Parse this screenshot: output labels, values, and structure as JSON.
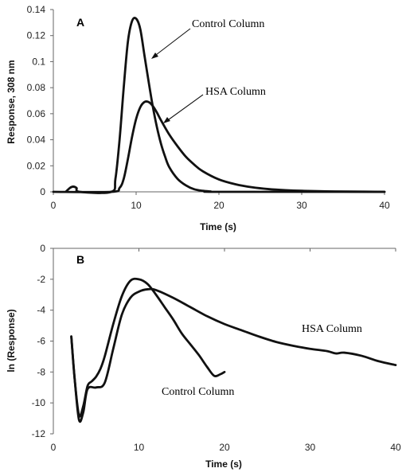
{
  "chart_data": [
    {
      "type": "line",
      "panel_label": "A",
      "xlabel": "Time (s)",
      "ylabel": "Response, 308 nm",
      "xlim": [
        0,
        40
      ],
      "ylim": [
        0,
        0.14
      ],
      "xticks": [
        0,
        10,
        20,
        30,
        40
      ],
      "yticks": [
        0,
        0.02,
        0.04,
        0.06,
        0.08,
        0.1,
        0.12,
        0.14
      ],
      "ytick_labels": [
        "0",
        "0.02",
        "0.04",
        "0.06",
        "0.08",
        "0.1",
        "0.12",
        "0.14"
      ],
      "grid": false,
      "series": [
        {
          "name": "Control Column",
          "x": [
            1.5,
            2.0,
            2.4,
            2.8,
            3.2,
            7.0,
            7.5,
            8.0,
            8.5,
            9.0,
            9.5,
            10.0,
            10.5,
            11.0,
            11.5,
            12.0,
            12.5,
            13.0,
            13.5,
            14.0,
            15.0,
            16.0,
            17.0,
            18.0,
            19.0,
            20.0,
            40.0
          ],
          "y": [
            0.0,
            0.003,
            0.004,
            0.003,
            0.0,
            0.0,
            0.01,
            0.04,
            0.08,
            0.115,
            0.131,
            0.133,
            0.125,
            0.105,
            0.085,
            0.066,
            0.05,
            0.037,
            0.027,
            0.019,
            0.01,
            0.005,
            0.002,
            0.0008,
            0.0003,
            0.0,
            0.0
          ]
        },
        {
          "name": "HSA Column",
          "x": [
            0.0,
            7.0,
            8.0,
            8.5,
            9.0,
            9.5,
            10.0,
            10.5,
            11.0,
            11.5,
            12.0,
            12.5,
            13.0,
            14.0,
            15.0,
            16.0,
            17.0,
            18.0,
            20.0,
            22.0,
            24.0,
            26.0,
            28.0,
            30.0,
            33.0,
            36.0,
            40.0
          ],
          "y": [
            0.0,
            0.0,
            0.003,
            0.01,
            0.025,
            0.042,
            0.056,
            0.065,
            0.069,
            0.069,
            0.066,
            0.061,
            0.055,
            0.044,
            0.035,
            0.027,
            0.021,
            0.016,
            0.0095,
            0.0058,
            0.0035,
            0.0021,
            0.0013,
            0.0008,
            0.0004,
            0.0002,
            0.0
          ]
        }
      ],
      "annotations": [
        {
          "text": "Control Column",
          "target_x": 12.0,
          "target_y": 0.14
        },
        {
          "text": "HSA Column",
          "target_x": 13.5,
          "target_y": 0.072
        }
      ]
    },
    {
      "type": "line",
      "panel_label": "B",
      "xlabel": "Time (s)",
      "ylabel": "ln (Response)",
      "xlim": [
        0,
        40
      ],
      "ylim": [
        -12,
        0
      ],
      "xticks": [
        0,
        10,
        20,
        30,
        40
      ],
      "yticks": [
        0,
        -2,
        -4,
        -6,
        -8,
        -10,
        -12
      ],
      "grid": false,
      "series": [
        {
          "name": "Control Column",
          "x": [
            2.1,
            2.5,
            3.0,
            3.5,
            4.0,
            4.5,
            5.0,
            5.5,
            6.0,
            7.0,
            8.0,
            9.0,
            10.0,
            11.0,
            12.0,
            13.0,
            14.0,
            15.0,
            16.0,
            17.0,
            18.0,
            18.8,
            19.5,
            20.0
          ],
          "y": [
            -5.7,
            -8.5,
            -10.8,
            -10.2,
            -8.9,
            -8.6,
            -8.3,
            -7.8,
            -7.0,
            -4.9,
            -3.1,
            -2.1,
            -2.0,
            -2.3,
            -3.0,
            -3.8,
            -4.6,
            -5.5,
            -6.2,
            -6.9,
            -7.7,
            -8.25,
            -8.15,
            -8.0
          ]
        },
        {
          "name": "HSA Column",
          "x": [
            2.1,
            2.5,
            3.0,
            3.5,
            4.0,
            5.0,
            6.0,
            7.0,
            8.0,
            9.0,
            10.0,
            11.0,
            12.0,
            14.0,
            16.0,
            18.0,
            20.0,
            22.0,
            24.0,
            26.0,
            28.0,
            30.0,
            32.0,
            33.0,
            34.0,
            36.0,
            38.0,
            40.0
          ],
          "y": [
            -5.7,
            -8.5,
            -11.1,
            -10.6,
            -9.1,
            -9.0,
            -8.7,
            -6.5,
            -4.3,
            -3.2,
            -2.8,
            -2.65,
            -2.7,
            -3.2,
            -3.8,
            -4.4,
            -4.9,
            -5.3,
            -5.7,
            -6.05,
            -6.3,
            -6.5,
            -6.65,
            -6.8,
            -6.75,
            -6.95,
            -7.3,
            -7.55
          ]
        }
      ],
      "annotations": [
        {
          "text": "HSA Column"
        },
        {
          "text": "Control Column"
        }
      ]
    }
  ]
}
